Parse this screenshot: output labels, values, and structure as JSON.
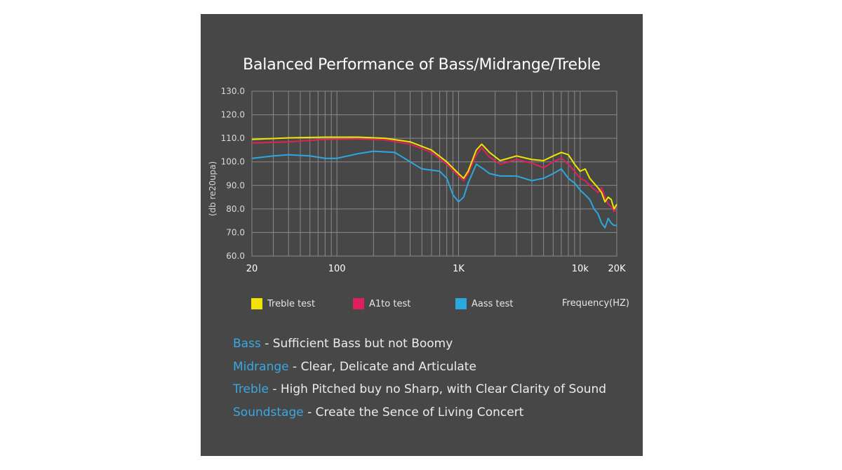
{
  "chart_data": {
    "type": "line",
    "title": "Balanced Performance of Bass/Midrange/Treble",
    "ylabel": "(db re20upa)",
    "xlabel": "Frequency(HZ)",
    "xscale": "log",
    "xlim": [
      20,
      20000
    ],
    "ylim": [
      60,
      130
    ],
    "yticks": [
      "130.0",
      "120.0",
      "110.0",
      "100.0",
      "90.0",
      "80.0",
      "70.0",
      "60.0"
    ],
    "ytick_values": [
      130,
      120,
      110,
      100,
      90,
      80,
      70,
      60
    ],
    "xticks": [
      "20",
      "100",
      "1K",
      "10k",
      "20K"
    ],
    "xtick_values": [
      20,
      100,
      1000,
      10000,
      20000
    ],
    "grid": true,
    "series": [
      {
        "name": "Treble test",
        "color": "#f2e400",
        "points": [
          [
            20,
            109.5
          ],
          [
            40,
            110.2
          ],
          [
            80,
            110.5
          ],
          [
            150,
            110.5
          ],
          [
            250,
            110
          ],
          [
            400,
            108.5
          ],
          [
            600,
            105
          ],
          [
            800,
            100
          ],
          [
            1000,
            95
          ],
          [
            1100,
            93
          ],
          [
            1200,
            96
          ],
          [
            1400,
            105
          ],
          [
            1550,
            107.5
          ],
          [
            1800,
            104
          ],
          [
            2200,
            100.5
          ],
          [
            3000,
            102.5
          ],
          [
            4000,
            101
          ],
          [
            5000,
            100.5
          ],
          [
            6000,
            102.5
          ],
          [
            7000,
            104
          ],
          [
            8000,
            103
          ],
          [
            9000,
            99
          ],
          [
            10000,
            96
          ],
          [
            11000,
            97
          ],
          [
            12000,
            93
          ],
          [
            14000,
            89
          ],
          [
            15000,
            87
          ],
          [
            16000,
            83
          ],
          [
            17000,
            85
          ],
          [
            18000,
            84
          ],
          [
            19000,
            80
          ],
          [
            20000,
            82
          ]
        ]
      },
      {
        "name": "A1to test",
        "color": "#e0205a",
        "points": [
          [
            20,
            108
          ],
          [
            40,
            108.5
          ],
          [
            80,
            109.5
          ],
          [
            150,
            109.7
          ],
          [
            250,
            109.3
          ],
          [
            400,
            107.5
          ],
          [
            600,
            104
          ],
          [
            800,
            99
          ],
          [
            1000,
            94
          ],
          [
            1100,
            92
          ],
          [
            1200,
            95
          ],
          [
            1400,
            103
          ],
          [
            1550,
            106
          ],
          [
            1800,
            102
          ],
          [
            2200,
            99
          ],
          [
            3000,
            101
          ],
          [
            4000,
            99.5
          ],
          [
            5000,
            97.5
          ],
          [
            6000,
            100
          ],
          [
            7000,
            101.5
          ],
          [
            8000,
            99
          ],
          [
            9000,
            96
          ],
          [
            10000,
            93
          ],
          [
            11000,
            92
          ],
          [
            12000,
            90
          ],
          [
            14000,
            87
          ],
          [
            15000,
            89
          ],
          [
            16000,
            85
          ],
          [
            17000,
            82
          ],
          [
            18000,
            81
          ],
          [
            19000,
            79
          ],
          [
            20000,
            79.5
          ]
        ]
      },
      {
        "name": "Aass test",
        "color": "#2ca8e0",
        "points": [
          [
            20,
            101.5
          ],
          [
            30,
            102.5
          ],
          [
            40,
            103
          ],
          [
            60,
            102.5
          ],
          [
            80,
            101.5
          ],
          [
            100,
            101.5
          ],
          [
            150,
            103.5
          ],
          [
            200,
            104.5
          ],
          [
            300,
            104
          ],
          [
            400,
            100
          ],
          [
            500,
            97
          ],
          [
            600,
            96.5
          ],
          [
            700,
            96
          ],
          [
            800,
            93
          ],
          [
            900,
            86
          ],
          [
            1000,
            83
          ],
          [
            1100,
            85
          ],
          [
            1200,
            91
          ],
          [
            1400,
            99
          ],
          [
            1600,
            97
          ],
          [
            1800,
            95
          ],
          [
            2200,
            94
          ],
          [
            3000,
            94
          ],
          [
            4000,
            92
          ],
          [
            5000,
            93
          ],
          [
            6000,
            95
          ],
          [
            7000,
            97
          ],
          [
            8000,
            93
          ],
          [
            9000,
            91
          ],
          [
            10000,
            88
          ],
          [
            11000,
            86
          ],
          [
            12000,
            84
          ],
          [
            13000,
            80
          ],
          [
            14000,
            78
          ],
          [
            15000,
            74
          ],
          [
            16000,
            72
          ],
          [
            17000,
            76
          ],
          [
            18000,
            74
          ],
          [
            19000,
            73
          ],
          [
            20000,
            73
          ]
        ]
      }
    ]
  },
  "descriptions": [
    {
      "key": "Bass",
      "text": " -  Sufficient Bass but not Boomy"
    },
    {
      "key": "Midrange",
      "text": " - Clear, Delicate and Articulate"
    },
    {
      "key": "Treble",
      "text": " - High Pitched buy no Sharp, with Clear Clarity of Sound"
    },
    {
      "key": "Soundstage",
      "text": " - Create the Sence of Living Concert"
    }
  ]
}
